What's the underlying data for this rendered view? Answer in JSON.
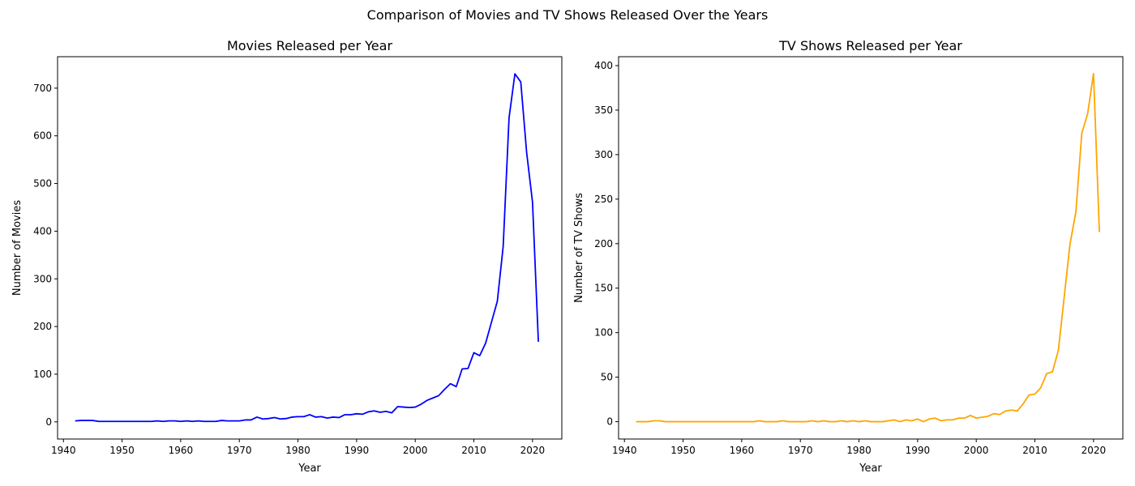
{
  "figure": {
    "title": "Comparison of Movies and TV Shows Released Over the Years"
  },
  "chart_data": [
    {
      "type": "line",
      "title": "Movies Released per Year",
      "xlabel": "Year",
      "ylabel": "Number of Movies",
      "xlim": [
        1939,
        2025
      ],
      "ylim": [
        -36,
        766
      ],
      "xticks": [
        1940,
        1950,
        1960,
        1970,
        1980,
        1990,
        2000,
        2010,
        2020
      ],
      "yticks": [
        0,
        100,
        200,
        300,
        400,
        500,
        600,
        700
      ],
      "grid": false,
      "color": "#0000ff",
      "series": [
        {
          "x": [
            1942,
            1943,
            1944,
            1945,
            1946,
            1947,
            1948,
            1949,
            1950,
            1951,
            1952,
            1953,
            1954,
            1955,
            1956,
            1957,
            1958,
            1959,
            1960,
            1961,
            1962,
            1963,
            1964,
            1965,
            1966,
            1967,
            1968,
            1969,
            1970,
            1971,
            1972,
            1973,
            1974,
            1975,
            1976,
            1977,
            1978,
            1979,
            1980,
            1981,
            1982,
            1983,
            1984,
            1985,
            1986,
            1987,
            1988,
            1989,
            1990,
            1991,
            1992,
            1993,
            1994,
            1995,
            1996,
            1997,
            1998,
            1999,
            2000,
            2001,
            2002,
            2003,
            2004,
            2005,
            2006,
            2007,
            2008,
            2009,
            2010,
            2011,
            2012,
            2013,
            2014,
            2015,
            2016,
            2017,
            2018,
            2019,
            2020,
            2021
          ],
          "y": [
            2,
            3,
            3,
            3,
            1,
            1,
            1,
            1,
            1,
            1,
            1,
            1,
            1,
            1,
            2,
            1,
            2,
            2,
            1,
            2,
            1,
            2,
            1,
            1,
            1,
            3,
            2,
            2,
            2,
            4,
            4,
            10,
            6,
            7,
            9,
            6,
            7,
            10,
            11,
            11,
            15,
            10,
            11,
            8,
            10,
            9,
            15,
            15,
            17,
            16,
            21,
            23,
            20,
            22,
            19,
            32,
            31,
            30,
            31,
            37,
            45,
            50,
            55,
            68,
            80,
            74,
            111,
            112,
            145,
            139,
            165,
            209,
            253,
            368,
            638,
            730,
            713,
            565,
            461,
            168
          ]
        }
      ]
    },
    {
      "type": "line",
      "title": "TV Shows Released per Year",
      "xlabel": "Year",
      "ylabel": "Number of TV Shows",
      "xlim": [
        1939,
        2025
      ],
      "ylim": [
        -19.5,
        410
      ],
      "xticks": [
        1940,
        1950,
        1960,
        1970,
        1980,
        1990,
        2000,
        2010,
        2020
      ],
      "yticks": [
        0,
        50,
        100,
        150,
        200,
        250,
        300,
        350,
        400
      ],
      "grid": false,
      "color": "#ffa500",
      "series": [
        {
          "x": [
            1942,
            1943,
            1944,
            1945,
            1946,
            1947,
            1948,
            1949,
            1950,
            1951,
            1952,
            1953,
            1954,
            1955,
            1956,
            1957,
            1958,
            1959,
            1960,
            1961,
            1962,
            1963,
            1964,
            1965,
            1966,
            1967,
            1968,
            1969,
            1970,
            1971,
            1972,
            1973,
            1974,
            1975,
            1976,
            1977,
            1978,
            1979,
            1980,
            1981,
            1982,
            1983,
            1984,
            1985,
            1986,
            1987,
            1988,
            1989,
            1990,
            1991,
            1992,
            1993,
            1994,
            1995,
            1996,
            1997,
            1998,
            1999,
            2000,
            2001,
            2002,
            2003,
            2004,
            2005,
            2006,
            2007,
            2008,
            2009,
            2010,
            2011,
            2012,
            2013,
            2014,
            2015,
            2016,
            2017,
            2018,
            2019,
            2020,
            2021
          ],
          "y": [
            0,
            0,
            0,
            1,
            1,
            0,
            0,
            0,
            0,
            0,
            0,
            0,
            0,
            0,
            0,
            0,
            0,
            0,
            0,
            0,
            0,
            1,
            0,
            0,
            0,
            1,
            0,
            0,
            0,
            0,
            1,
            0,
            1,
            0,
            0,
            1,
            0,
            1,
            0,
            1,
            0,
            0,
            0,
            1,
            2,
            0,
            2,
            1,
            3,
            0,
            3,
            4,
            1,
            2,
            2,
            4,
            4,
            7,
            4,
            5,
            6,
            9,
            8,
            12,
            13,
            12,
            20,
            30,
            31,
            38,
            54,
            56,
            80,
            140,
            200,
            236,
            324,
            346,
            391,
            213
          ]
        }
      ]
    }
  ]
}
